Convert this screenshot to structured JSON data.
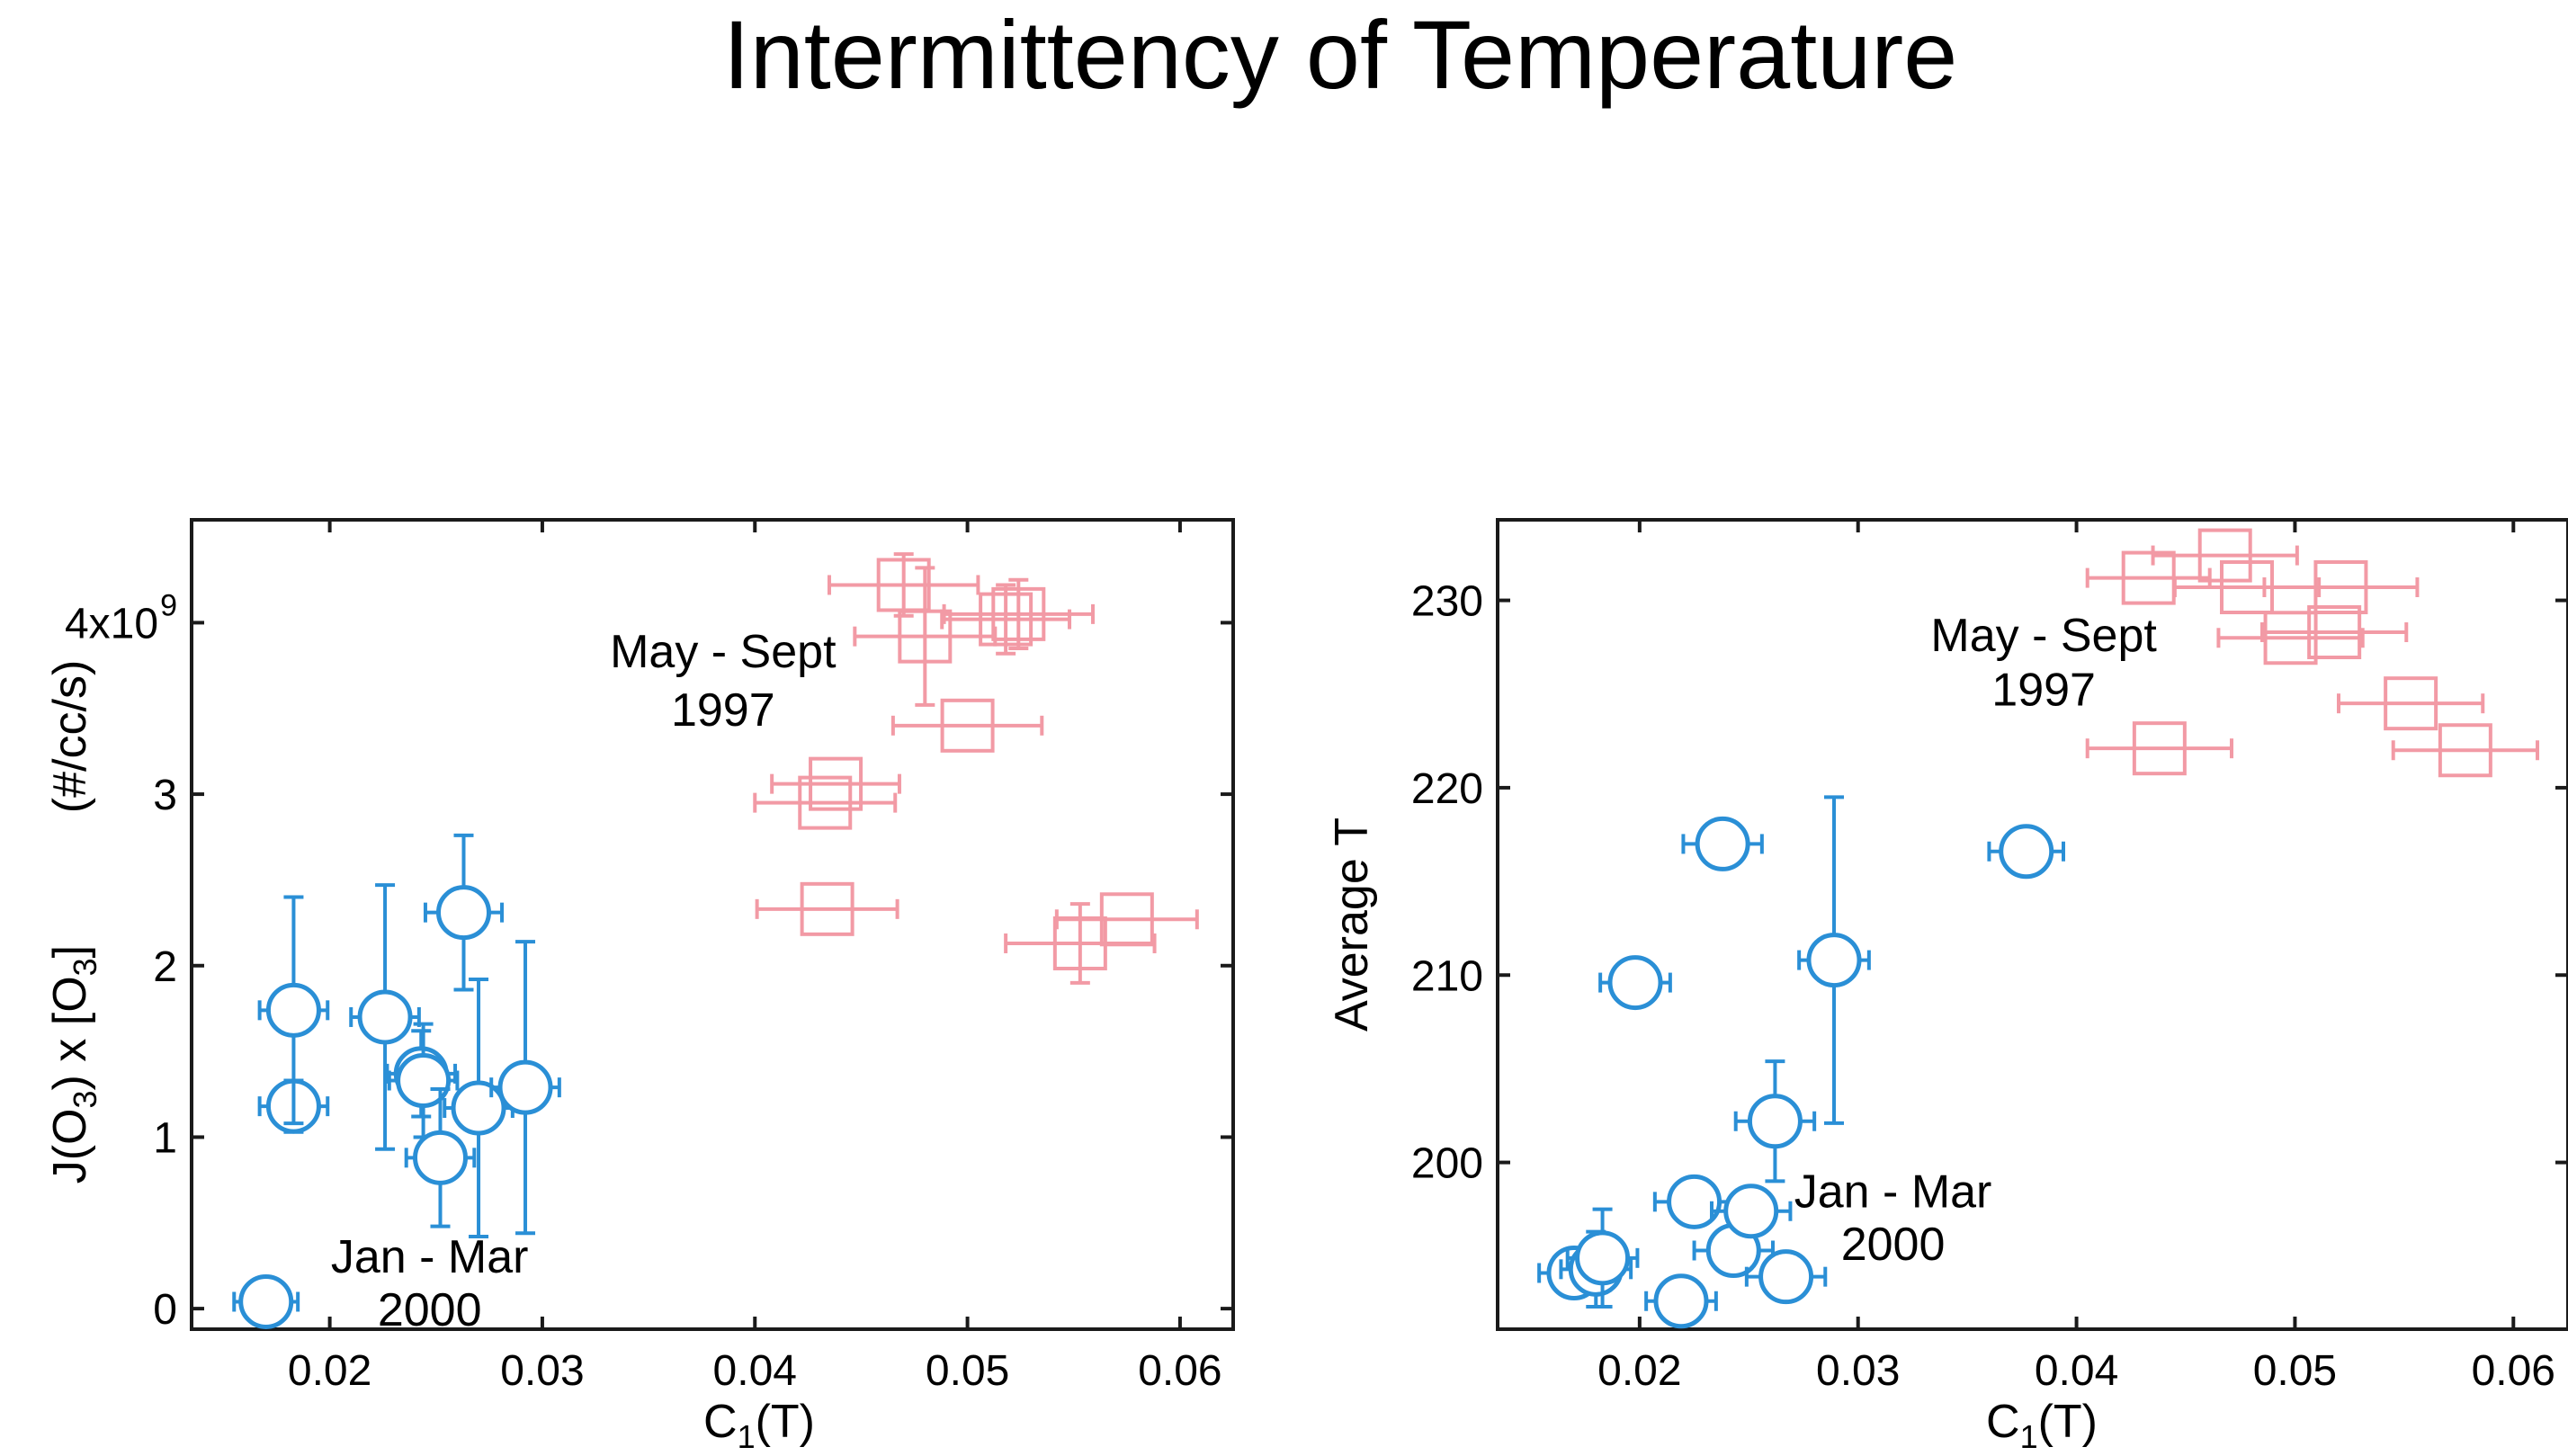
{
  "title": "Intermittency of Temperature",
  "colors": {
    "winter": "#2a8fd6",
    "summer": "#f29aa5",
    "axis": "#1a1a1a"
  },
  "chart_data": [
    {
      "type": "scatter",
      "xlabel_main": "C",
      "xlabel_sub": "1",
      "xlabel_tail": "(T)",
      "ylabel": "J(O3) x [O3]      (#/cc/s)",
      "ylabel_parts": {
        "a": "J(O",
        "a_sub": "3",
        "b": ") x [O",
        "b_sub": "3",
        "c": "]",
        "units": "(#/cc/s)"
      },
      "xlim": [
        0.0135,
        0.0625
      ],
      "ylim": [
        -0.12,
        4.6
      ],
      "x_ticks": [
        {
          "value": 0.02,
          "label": "0.02"
        },
        {
          "value": 0.03,
          "label": "0.03"
        },
        {
          "value": 0.04,
          "label": "0.04"
        },
        {
          "value": 0.05,
          "label": "0.05"
        },
        {
          "value": 0.06,
          "label": "0.06"
        }
      ],
      "y_ticks": [
        {
          "value": 0,
          "label": "0"
        },
        {
          "value": 1,
          "label": "1"
        },
        {
          "value": 2,
          "label": "2"
        },
        {
          "value": 3,
          "label": "3"
        },
        {
          "value": 4,
          "label": "4x10",
          "sup": "9"
        }
      ],
      "annotations": [
        {
          "text": "May - Sept",
          "x": 0.0385,
          "y": 3.74
        },
        {
          "text": "1997",
          "x": 0.0385,
          "y": 3.4
        },
        {
          "text": "Jan - Mar",
          "x": 0.0247,
          "y": 0.21
        },
        {
          "text": "2000",
          "x": 0.0247,
          "y": -0.1
        }
      ],
      "series": [
        {
          "name": "Jan - Mar 2000",
          "marker": "circle",
          "color": "#2a8fd6",
          "points": [
            {
              "x": 0.017,
              "y": 0.04,
              "xerr": 0.0015,
              "yerr": 0.0
            },
            {
              "x": 0.0183,
              "y": 1.18,
              "xerr": 0.0016,
              "yerr": 0.15
            },
            {
              "x": 0.0183,
              "y": 1.74,
              "xerr": 0.0016,
              "yerr": 0.66
            },
            {
              "x": 0.0226,
              "y": 1.7,
              "xerr": 0.0016,
              "yerr": 0.77
            },
            {
              "x": 0.0243,
              "y": 1.37,
              "xerr": 0.0016,
              "yerr": 0.25
            },
            {
              "x": 0.0244,
              "y": 1.33,
              "xerr": 0.0016,
              "yerr": 0.33
            },
            {
              "x": 0.0252,
              "y": 0.88,
              "xerr": 0.0016,
              "yerr": 0.4
            },
            {
              "x": 0.0263,
              "y": 2.31,
              "xerr": 0.0018,
              "yerr": 0.45
            },
            {
              "x": 0.027,
              "y": 1.17,
              "xerr": 0.0016,
              "yerr": 0.75
            },
            {
              "x": 0.0292,
              "y": 1.29,
              "xerr": 0.0016,
              "yerr": 0.85
            }
          ]
        },
        {
          "name": "May - Sept 1997",
          "marker": "square",
          "color": "#f29aa5",
          "points": [
            {
              "x": 0.0434,
              "y": 2.33,
              "xerr": 0.0033,
              "yerr": 0.0
            },
            {
              "x": 0.0433,
              "y": 2.95,
              "xerr": 0.0033,
              "yerr": 0.0
            },
            {
              "x": 0.0438,
              "y": 3.06,
              "xerr": 0.003,
              "yerr": 0.0
            },
            {
              "x": 0.047,
              "y": 4.22,
              "xerr": 0.0035,
              "yerr": 0.18
            },
            {
              "x": 0.048,
              "y": 3.92,
              "xerr": 0.0033,
              "yerr": 0.4
            },
            {
              "x": 0.05,
              "y": 3.4,
              "xerr": 0.0035,
              "yerr": 0.0
            },
            {
              "x": 0.0518,
              "y": 4.02,
              "xerr": 0.003,
              "yerr": 0.2
            },
            {
              "x": 0.0524,
              "y": 4.05,
              "xerr": 0.0035,
              "yerr": 0.2
            },
            {
              "x": 0.0553,
              "y": 2.13,
              "xerr": 0.0035,
              "yerr": 0.23
            },
            {
              "x": 0.0575,
              "y": 2.27,
              "xerr": 0.0033,
              "yerr": 0.0
            }
          ]
        }
      ]
    },
    {
      "type": "scatter",
      "xlabel_main": "C",
      "xlabel_sub": "1",
      "xlabel_tail": "(T)",
      "ylabel": "Average T",
      "xlim": [
        0.0135,
        0.0625
      ],
      "ylim": [
        191.1,
        234.3
      ],
      "x_ticks": [
        {
          "value": 0.02,
          "label": "0.02"
        },
        {
          "value": 0.03,
          "label": "0.03"
        },
        {
          "value": 0.04,
          "label": "0.04"
        },
        {
          "value": 0.05,
          "label": "0.05"
        },
        {
          "value": 0.06,
          "label": "0.06"
        }
      ],
      "y_ticks": [
        {
          "value": 200,
          "label": "200"
        },
        {
          "value": 210,
          "label": "210"
        },
        {
          "value": 220,
          "label": "220"
        },
        {
          "value": 230,
          "label": "230"
        }
      ],
      "annotations": [
        {
          "text": "May - Sept",
          "x": 0.0385,
          "y": 227.3
        },
        {
          "text": "1997",
          "x": 0.0385,
          "y": 224.4
        },
        {
          "text": "Jan - Mar",
          "x": 0.0316,
          "y": 197.6
        },
        {
          "text": "2000",
          "x": 0.0316,
          "y": 194.8
        }
      ],
      "series": [
        {
          "name": "Jan - Mar 2000",
          "marker": "circle",
          "color": "#2a8fd6",
          "points": [
            {
              "x": 0.017,
              "y": 194.1,
              "xerr": 0.0016,
              "yerr": 0.6
            },
            {
              "x": 0.018,
              "y": 194.3,
              "xerr": 0.0016,
              "yerr": 2.0
            },
            {
              "x": 0.0183,
              "y": 194.9,
              "xerr": 0.0016,
              "yerr": 2.6
            },
            {
              "x": 0.0198,
              "y": 209.6,
              "xerr": 0.0016,
              "yerr": 0.0
            },
            {
              "x": 0.0219,
              "y": 192.6,
              "xerr": 0.0016,
              "yerr": 0.0
            },
            {
              "x": 0.0225,
              "y": 197.9,
              "xerr": 0.0018,
              "yerr": 0.0
            },
            {
              "x": 0.0238,
              "y": 217.0,
              "xerr": 0.0018,
              "yerr": 0.0
            },
            {
              "x": 0.0243,
              "y": 195.3,
              "xerr": 0.0018,
              "yerr": 0.0
            },
            {
              "x": 0.0251,
              "y": 197.4,
              "xerr": 0.0018,
              "yerr": 0.0
            },
            {
              "x": 0.0262,
              "y": 202.2,
              "xerr": 0.0018,
              "yerr": 3.2
            },
            {
              "x": 0.0267,
              "y": 193.9,
              "xerr": 0.0018,
              "yerr": 0.0
            },
            {
              "x": 0.0289,
              "y": 210.8,
              "xerr": 0.0016,
              "yerr": 8.7
            },
            {
              "x": 0.0377,
              "y": 216.6,
              "xerr": 0.0017,
              "yerr": 0.0
            }
          ]
        },
        {
          "name": "May - Sept 1997",
          "marker": "square",
          "color": "#f29aa5",
          "points": [
            {
              "x": 0.0433,
              "y": 231.2,
              "xerr": 0.0028,
              "yerr": 0.0
            },
            {
              "x": 0.0438,
              "y": 222.1,
              "xerr": 0.0033,
              "yerr": 0.0
            },
            {
              "x": 0.0468,
              "y": 232.4,
              "xerr": 0.0033,
              "yerr": 0.0
            },
            {
              "x": 0.0478,
              "y": 230.7,
              "xerr": 0.0033,
              "yerr": 0.0
            },
            {
              "x": 0.0498,
              "y": 228.0,
              "xerr": 0.0033,
              "yerr": 0.0
            },
            {
              "x": 0.0518,
              "y": 228.3,
              "xerr": 0.0033,
              "yerr": 0.0
            },
            {
              "x": 0.0521,
              "y": 230.7,
              "xerr": 0.0035,
              "yerr": 0.0
            },
            {
              "x": 0.0553,
              "y": 224.5,
              "xerr": 0.0033,
              "yerr": 0.0
            },
            {
              "x": 0.0578,
              "y": 222.0,
              "xerr": 0.0033,
              "yerr": 0.0
            }
          ]
        }
      ]
    }
  ]
}
